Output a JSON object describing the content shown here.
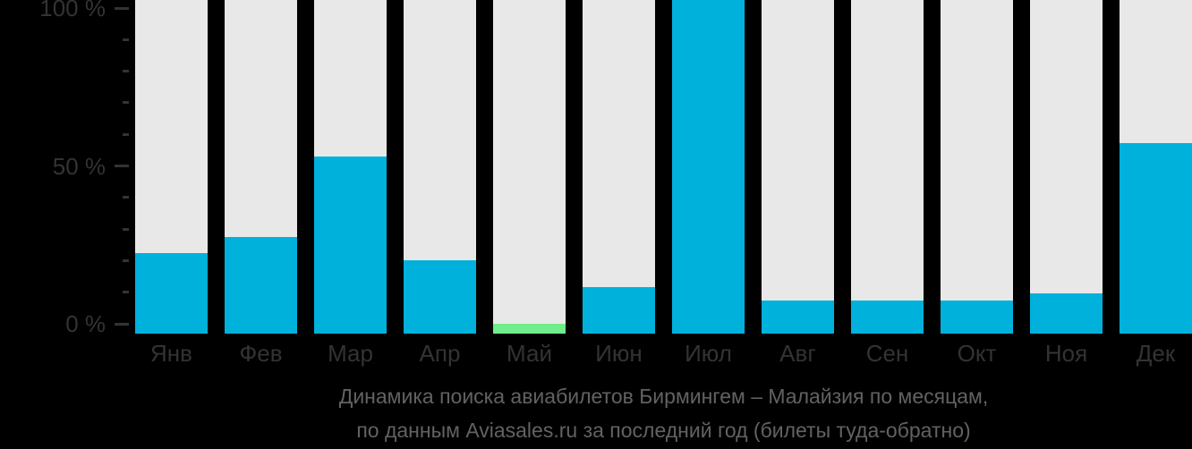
{
  "chart_data": {
    "type": "bar",
    "title": "Динамика поиска авиабилетов Бирмингем – Малайзия по месяцам,",
    "subtitle": "по данным Aviasales.ru за последний год (билеты туда-обратно)",
    "categories": [
      "Янв",
      "Фев",
      "Мар",
      "Апр",
      "Май",
      "Июн",
      "Июл",
      "Авг",
      "Сен",
      "Окт",
      "Ноя",
      "Дек"
    ],
    "values": [
      24,
      29,
      53,
      22,
      3,
      14,
      100,
      10,
      10,
      10,
      12,
      57
    ],
    "min_month_index": 4,
    "unit": "%",
    "xlabel": "",
    "ylabel": "",
    "ylim": [
      0,
      100
    ],
    "grid": false,
    "legend": "none",
    "y_axis": {
      "tick_step": 10,
      "labeled_ticks": [
        {
          "value": 100,
          "label": "100 %"
        },
        {
          "value": 50,
          "label": "50 %"
        },
        {
          "value": 0,
          "label": "0 %"
        }
      ]
    },
    "colors": {
      "bar": "#00b1dc",
      "min_bar": "#6fec8b",
      "track": "#e8e8e8",
      "background": "#000000",
      "axis_text": "#333333",
      "caption_text": "#626262"
    }
  }
}
